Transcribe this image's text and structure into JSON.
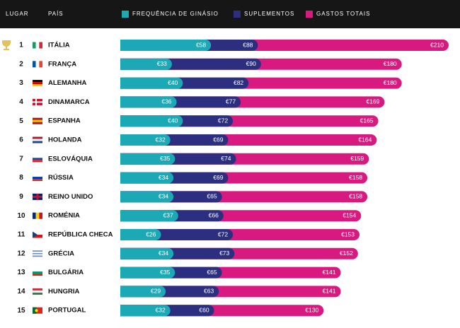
{
  "chart_data": {
    "type": "bar",
    "orientation": "horizontal",
    "header": {
      "rank": "LUGAR",
      "country": "PAÍS"
    },
    "ranks": [
      1,
      2,
      3,
      4,
      5,
      6,
      7,
      8,
      9,
      10,
      11,
      12,
      13,
      14,
      15
    ],
    "categories": [
      "ITÁLIA",
      "FRANÇA",
      "ALEMANHA",
      "DINAMARCA",
      "ESPANHA",
      "HOLANDA",
      "ESLOVÁQUIA",
      "RÚSSIA",
      "REINO UNIDO",
      "ROMÉNIA",
      "REPÚBLICA CHECA",
      "GRÉCIA",
      "BULGÁRIA",
      "HUNGRIA",
      "PORTUGAL"
    ],
    "xlim": [
      0,
      215
    ],
    "series": [
      {
        "name": "FREQUÊNCIA DE GINÁSIO",
        "color": "#1ba9b6",
        "values": [
          58,
          33,
          40,
          36,
          40,
          32,
          35,
          34,
          34,
          37,
          26,
          34,
          35,
          29,
          32
        ],
        "value_labels": [
          "€58",
          "€33",
          "€40",
          "€36",
          "€40",
          "€32",
          "€35",
          "€34",
          "€34",
          "€37",
          "€26",
          "€34",
          "€35",
          "€29",
          "€32"
        ]
      },
      {
        "name": "SUPLEMENTOS",
        "color": "#2c2f80",
        "values": [
          88,
          90,
          82,
          77,
          72,
          69,
          74,
          69,
          65,
          66,
          72,
          73,
          65,
          63,
          60
        ],
        "value_labels": [
          "€88",
          "€90",
          "€82",
          "€77",
          "€72",
          "€69",
          "€74",
          "€69",
          "€65",
          "€66",
          "€72",
          "€73",
          "€65",
          "€63",
          "€60"
        ]
      },
      {
        "name": "GASTOS TOTAIS",
        "color": "#d81a80",
        "values": [
          210,
          180,
          180,
          169,
          165,
          164,
          159,
          158,
          158,
          154,
          153,
          152,
          141,
          141,
          130
        ],
        "value_labels": [
          "€210",
          "€180",
          "€180",
          "€169",
          "€165",
          "€164",
          "€159",
          "€158",
          "€158",
          "€154",
          "€153",
          "€152",
          "€141",
          "€141",
          "€130"
        ]
      }
    ]
  }
}
